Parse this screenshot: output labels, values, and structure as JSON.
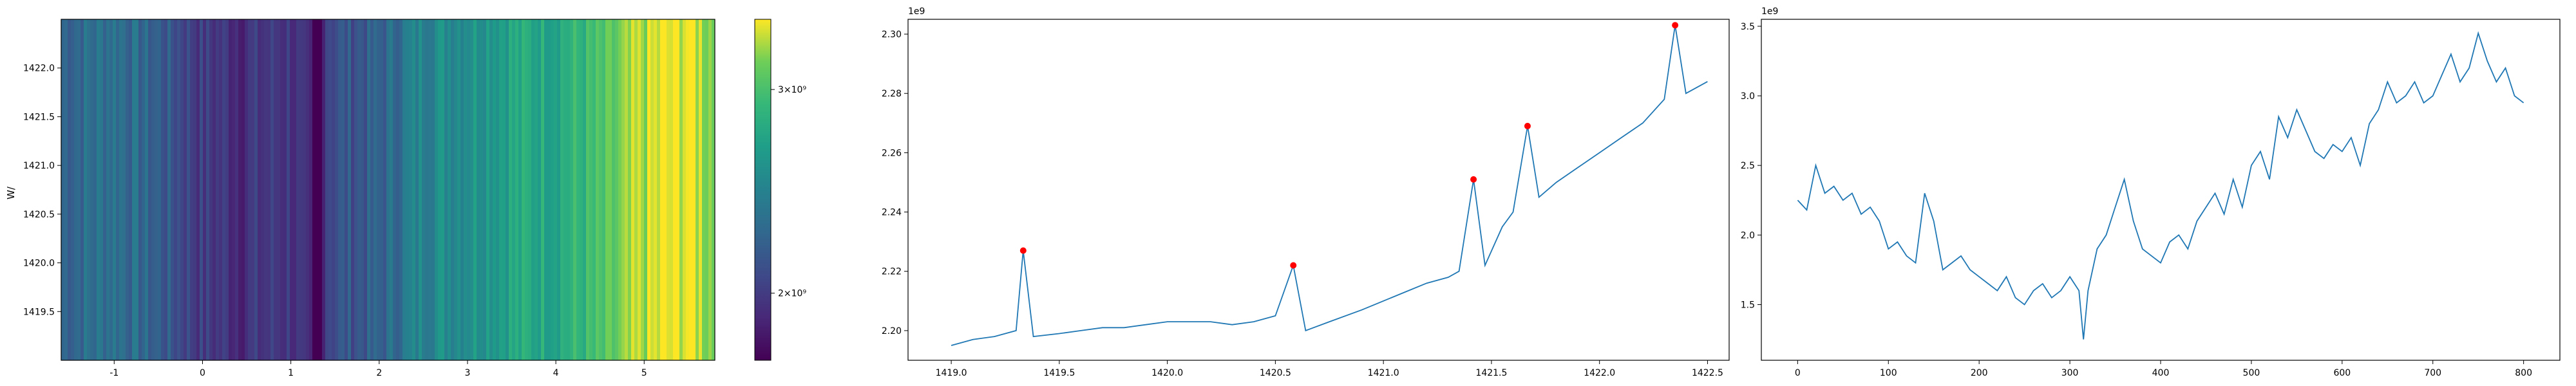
{
  "chart_data": [
    {
      "type": "heatmap",
      "title": "",
      "xlabel": "",
      "ylabel": "W/",
      "xlim": [
        -1.6,
        5.8
      ],
      "ylim": [
        1419.0,
        1422.5
      ],
      "x_ticks": [
        -1,
        0,
        1,
        2,
        3,
        4,
        5
      ],
      "y_ticks": [
        1419.5,
        1420.0,
        1420.5,
        1421.0,
        1421.5,
        1422.0
      ],
      "colormap": "viridis",
      "colorbar": {
        "min": 1750000000.0,
        "max": 3450000000.0,
        "log_scale": true,
        "ticks": [
          {
            "value": 2000000000.0,
            "label": "2×10⁹"
          },
          {
            "value": 3000000000.0,
            "label": "3×10⁹"
          }
        ]
      },
      "column_profile": [
        {
          "x": -1.6,
          "v": 2250000000.0
        },
        {
          "x": -1.0,
          "v": 2350000000.0
        },
        {
          "x": -0.5,
          "v": 2200000000.0
        },
        {
          "x": 0.0,
          "v": 2000000000.0
        },
        {
          "x": 0.5,
          "v": 1950000000.0
        },
        {
          "x": 1.0,
          "v": 2000000000.0
        },
        {
          "x": 1.3,
          "v": 1750000000.0
        },
        {
          "x": 1.4,
          "v": 2100000000.0
        },
        {
          "x": 2.0,
          "v": 2200000000.0
        },
        {
          "x": 2.5,
          "v": 2500000000.0
        },
        {
          "x": 3.0,
          "v": 2600000000.0
        },
        {
          "x": 3.5,
          "v": 2750000000.0
        },
        {
          "x": 4.0,
          "v": 2800000000.0
        },
        {
          "x": 4.5,
          "v": 2950000000.0
        },
        {
          "x": 5.0,
          "v": 3300000000.0
        },
        {
          "x": 5.5,
          "v": 3450000000.0
        },
        {
          "x": 5.8,
          "v": 3200000000.0
        }
      ]
    },
    {
      "type": "line",
      "title": "",
      "xlabel": "",
      "ylabel": "",
      "y_offset_label": "1e9",
      "xlim": [
        1418.8,
        1422.6
      ],
      "ylim": [
        2.19,
        2.305
      ],
      "x_ticks": [
        1419.0,
        1419.5,
        1420.0,
        1420.5,
        1421.0,
        1421.5,
        1422.0,
        1422.5
      ],
      "y_ticks": [
        2.2,
        2.22,
        2.24,
        2.26,
        2.28,
        2.3
      ],
      "line_color": "#1f77b4",
      "marker_color": "#ff0000",
      "series": [
        {
          "x": [
            1419.0,
            1419.1,
            1419.2,
            1419.3,
            1419.333,
            1419.38,
            1419.5,
            1419.6,
            1419.7,
            1419.8,
            1419.9,
            1420.0,
            1420.1,
            1420.2,
            1420.3,
            1420.4,
            1420.5,
            1420.583,
            1420.64,
            1420.75,
            1420.9,
            1421.0,
            1421.1,
            1421.2,
            1421.3,
            1421.35,
            1421.417,
            1421.47,
            1421.55,
            1421.6,
            1421.667,
            1421.72,
            1421.8,
            1421.9,
            1422.0,
            1422.1,
            1422.2,
            1422.3,
            1422.35,
            1422.4,
            1422.5
          ],
          "y": [
            2.195,
            2.197,
            2.198,
            2.2,
            2.227,
            2.198,
            2.199,
            2.2,
            2.201,
            2.201,
            2.202,
            2.203,
            2.203,
            2.203,
            2.202,
            2.203,
            2.205,
            2.222,
            2.2,
            2.203,
            2.207,
            2.21,
            2.213,
            2.216,
            2.218,
            2.22,
            2.251,
            2.222,
            2.235,
            2.24,
            2.269,
            2.245,
            2.25,
            2.255,
            2.26,
            2.265,
            2.27,
            2.278,
            2.303,
            2.28,
            2.284
          ]
        }
      ],
      "peaks": [
        {
          "x": 1419.333,
          "y": 2.227
        },
        {
          "x": 1420.583,
          "y": 2.222
        },
        {
          "x": 1421.417,
          "y": 2.251
        },
        {
          "x": 1421.667,
          "y": 2.269
        },
        {
          "x": 1422.35,
          "y": 2.303
        }
      ]
    },
    {
      "type": "line",
      "title": "",
      "xlabel": "",
      "ylabel": "",
      "y_offset_label": "1e9",
      "xlim": [
        -40,
        840
      ],
      "ylim": [
        1.1,
        3.55
      ],
      "x_ticks": [
        0,
        100,
        200,
        300,
        400,
        500,
        600,
        700,
        800
      ],
      "y_ticks": [
        1.5,
        2.0,
        2.5,
        3.0,
        3.5
      ],
      "line_color": "#1f77b4",
      "series": [
        {
          "x": [
            0,
            10,
            20,
            30,
            40,
            50,
            60,
            70,
            80,
            90,
            100,
            110,
            120,
            130,
            140,
            150,
            160,
            170,
            180,
            190,
            200,
            210,
            220,
            230,
            240,
            250,
            260,
            270,
            280,
            290,
            300,
            310,
            315,
            320,
            330,
            340,
            350,
            360,
            370,
            380,
            390,
            400,
            410,
            420,
            430,
            440,
            450,
            460,
            470,
            480,
            490,
            500,
            510,
            520,
            530,
            540,
            550,
            560,
            570,
            580,
            590,
            600,
            610,
            620,
            630,
            640,
            650,
            660,
            670,
            680,
            690,
            700,
            710,
            720,
            730,
            740,
            750,
            760,
            770,
            780,
            790,
            800
          ],
          "y": [
            2.25,
            2.18,
            2.5,
            2.3,
            2.35,
            2.25,
            2.3,
            2.15,
            2.2,
            2.1,
            1.9,
            1.95,
            1.85,
            1.8,
            2.3,
            2.1,
            1.75,
            1.8,
            1.85,
            1.75,
            1.7,
            1.65,
            1.6,
            1.7,
            1.55,
            1.5,
            1.6,
            1.65,
            1.55,
            1.6,
            1.7,
            1.6,
            1.25,
            1.6,
            1.9,
            2.0,
            2.2,
            2.4,
            2.1,
            1.9,
            1.85,
            1.8,
            1.95,
            2.0,
            1.9,
            2.1,
            2.2,
            2.3,
            2.15,
            2.4,
            2.2,
            2.5,
            2.6,
            2.4,
            2.85,
            2.7,
            2.9,
            2.75,
            2.6,
            2.55,
            2.65,
            2.6,
            2.7,
            2.5,
            2.8,
            2.9,
            3.1,
            2.95,
            3.0,
            3.1,
            2.95,
            3.0,
            3.15,
            3.3,
            3.1,
            3.2,
            3.45,
            3.25,
            3.1,
            3.2,
            3.0,
            2.95
          ]
        }
      ]
    }
  ]
}
